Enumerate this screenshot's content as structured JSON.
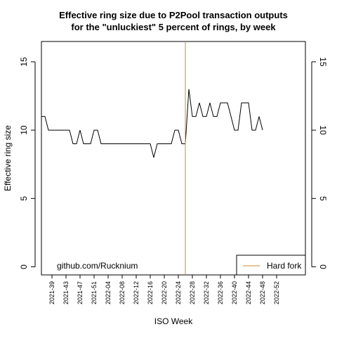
{
  "chart_data": {
    "type": "line",
    "title_lines": [
      "Effective ring size due to P2Pool transaction outputs",
      "for the \"unluckiest\" 5 percent of rings, by week"
    ],
    "xlabel": "ISO Week",
    "ylabel": "Effective ring size",
    "ylim": [
      0,
      15
    ],
    "yticks": [
      0,
      5,
      10,
      15
    ],
    "xlim": [
      -3,
      60
    ],
    "x_tick_labels": [
      {
        "label": "2021-39",
        "x": 0
      },
      {
        "label": "2021-43",
        "x": 4
      },
      {
        "label": "2021-47",
        "x": 8
      },
      {
        "label": "2021-51",
        "x": 12
      },
      {
        "label": "2022-04",
        "x": 16
      },
      {
        "label": "2022-08",
        "x": 20
      },
      {
        "label": "2022-12",
        "x": 24
      },
      {
        "label": "2022-16",
        "x": 28
      },
      {
        "label": "2022-20",
        "x": 32
      },
      {
        "label": "2022-24",
        "x": 36
      },
      {
        "label": "2022-28",
        "x": 40
      },
      {
        "label": "2022-32",
        "x": 44
      },
      {
        "label": "2022-36",
        "x": 48
      },
      {
        "label": "2022-40",
        "x": 52
      },
      {
        "label": "2022-44",
        "x": 56
      },
      {
        "label": "2022-48",
        "x": 60
      },
      {
        "label": "2022-52",
        "x": 64
      }
    ],
    "series": [
      {
        "color": "#000000",
        "x": [
          -3,
          -2,
          -1,
          0,
          1,
          2,
          3,
          4,
          5,
          6,
          7,
          8,
          9,
          10,
          11,
          12,
          13,
          14,
          15,
          16,
          17,
          18,
          19,
          20,
          21,
          22,
          23,
          24,
          25,
          26,
          27,
          28,
          29,
          30,
          31,
          32,
          33,
          34,
          35,
          36,
          37,
          38,
          39,
          40,
          41,
          42,
          43,
          44,
          45,
          46,
          47,
          48,
          49,
          50,
          51,
          52,
          53,
          54,
          55,
          56,
          57,
          58,
          59,
          60
        ],
        "values": [
          11,
          11,
          10,
          10,
          10,
          10,
          10,
          10,
          10,
          9,
          9,
          10,
          9,
          9,
          9,
          10,
          10,
          9,
          9,
          9,
          9,
          9,
          9,
          9,
          9,
          9,
          9,
          9,
          9,
          9,
          9,
          9,
          8,
          9,
          9,
          9,
          9,
          9,
          10,
          10,
          9,
          9,
          13,
          11,
          11,
          12,
          11,
          11,
          12,
          11,
          11,
          12,
          12,
          12,
          11,
          10,
          10,
          12,
          12,
          12,
          10,
          10,
          11,
          10
        ]
      }
    ],
    "vline": {
      "x": 38,
      "label": "Hard fork",
      "color": "#cc8b2e"
    },
    "legend": {
      "position": "bottom-right",
      "entries": [
        {
          "label": "Hard fork",
          "color": "#cc8b2e"
        }
      ]
    },
    "annotation": "github.com/Rucknium",
    "grid": false
  }
}
